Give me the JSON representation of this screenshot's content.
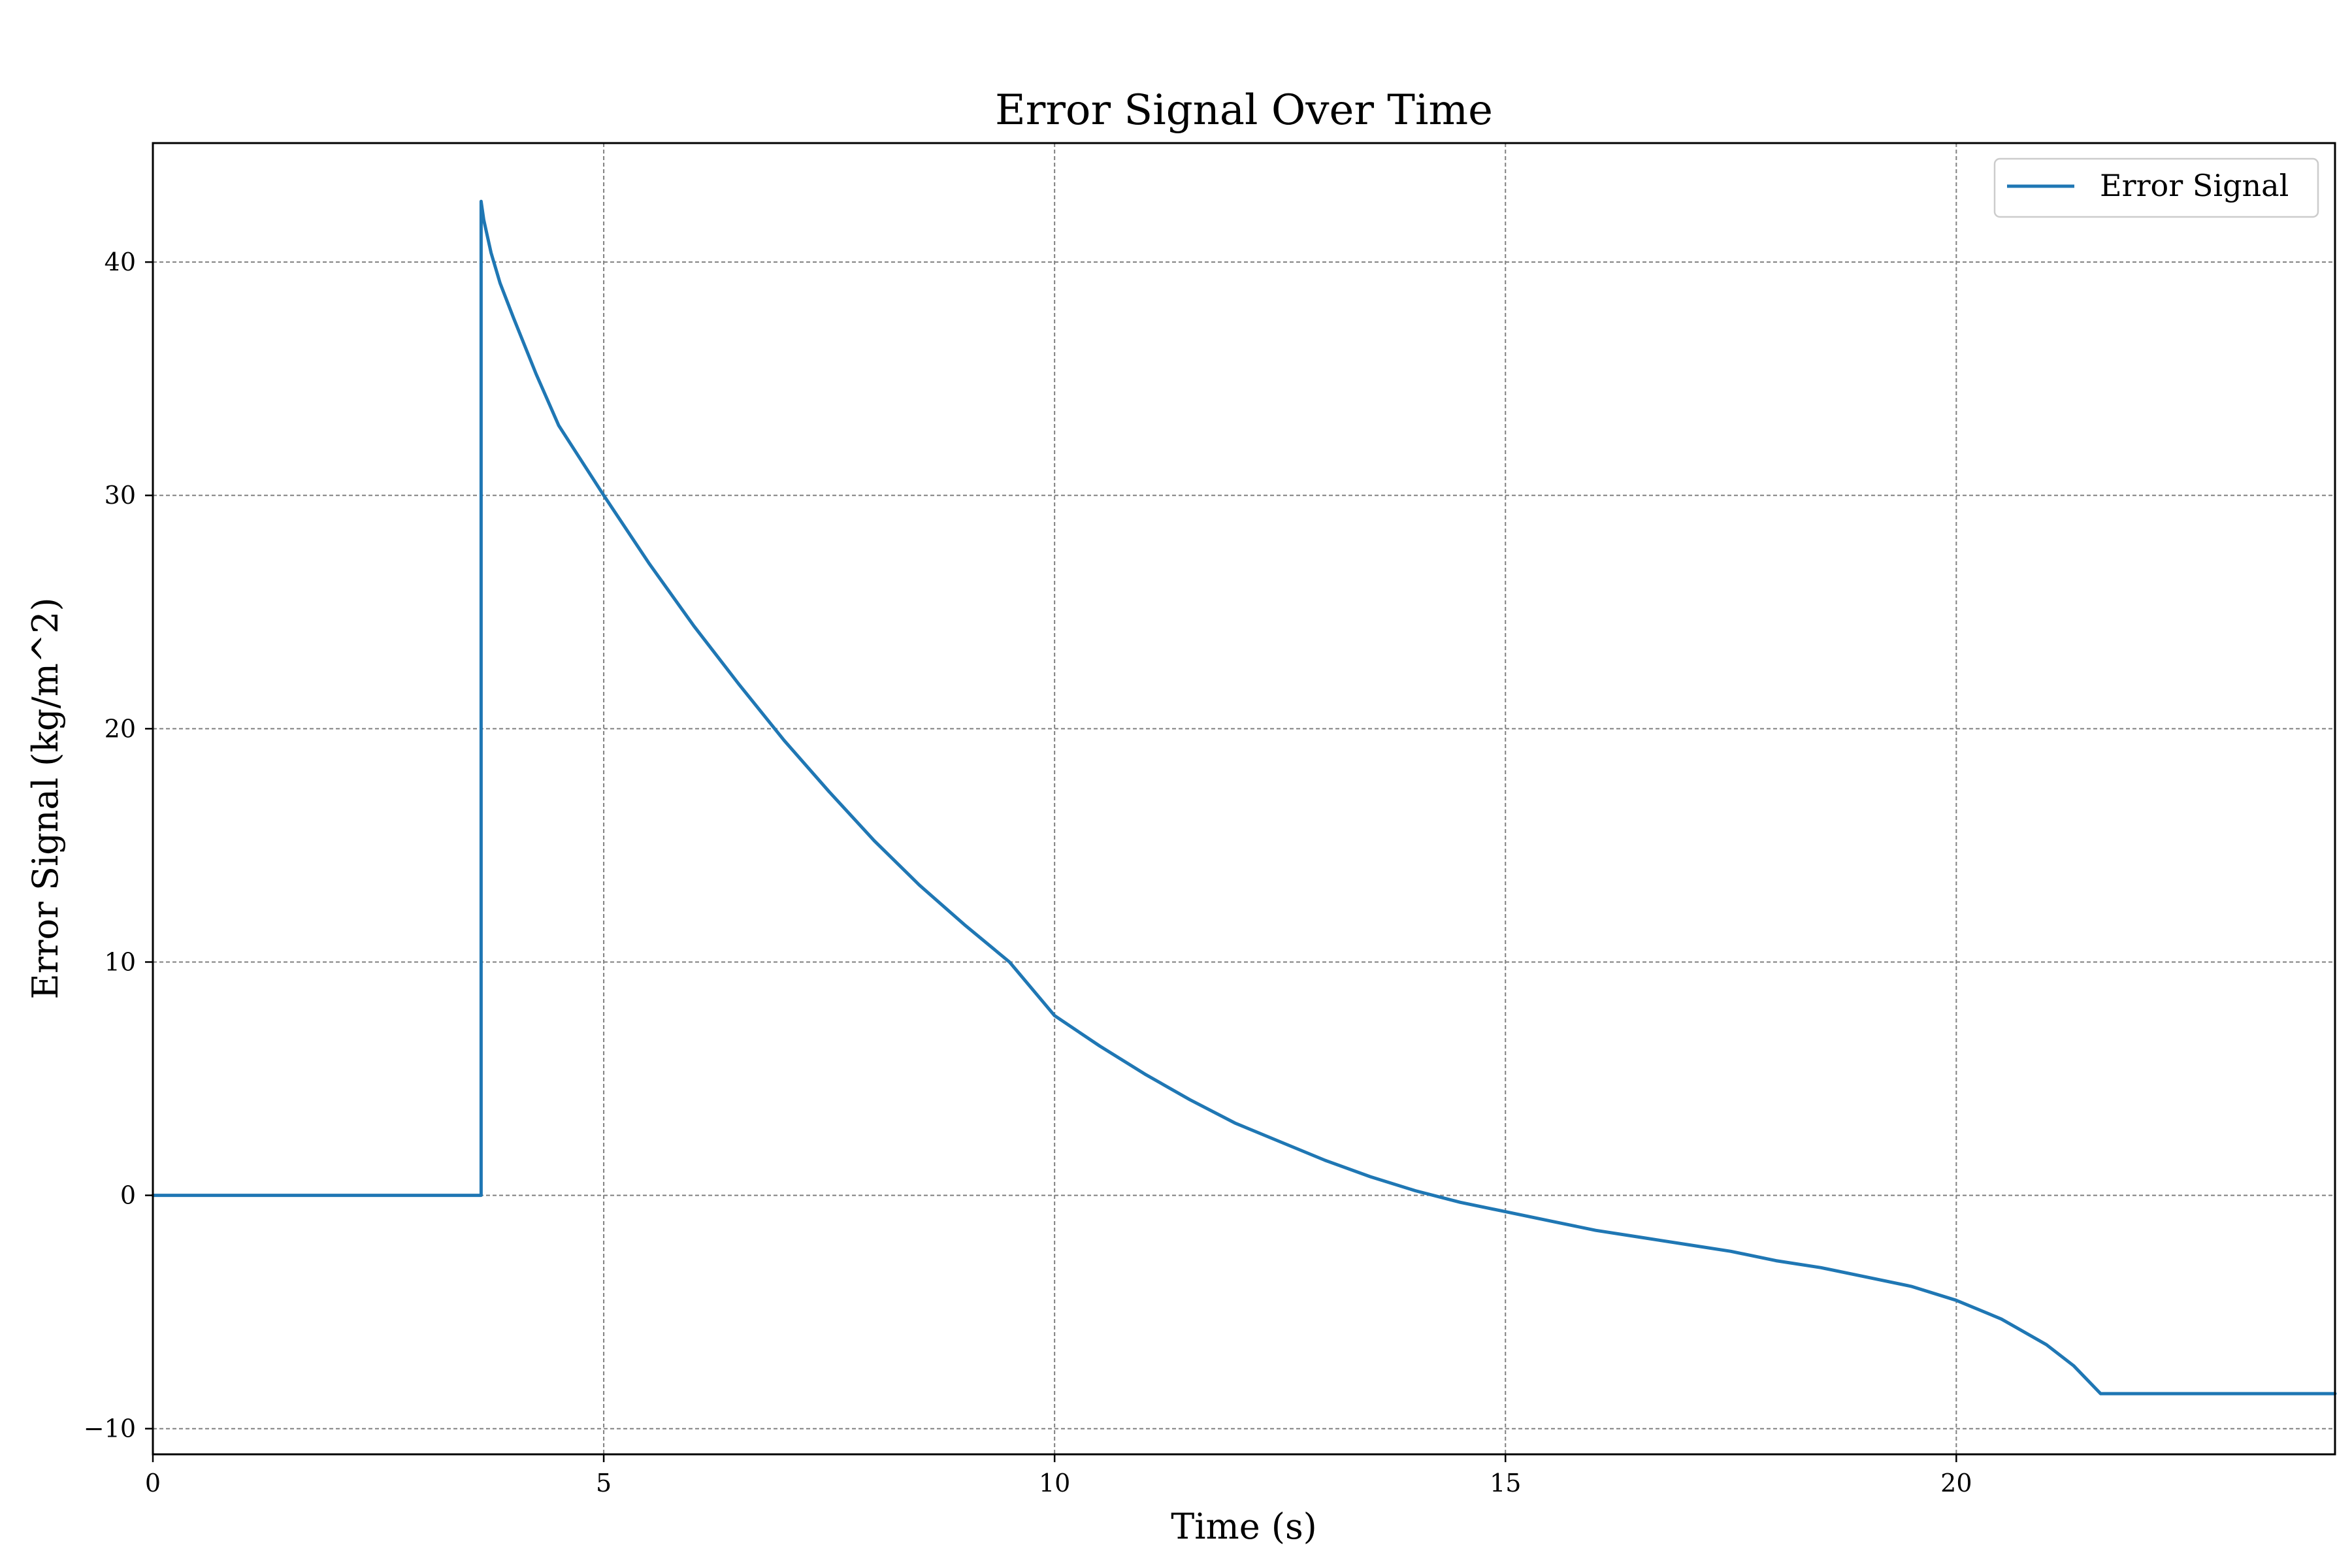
{
  "chart_data": {
    "type": "line",
    "title": "Error Signal Over Time",
    "xlabel": "Time (s)",
    "ylabel": "Error Signal (kg/m^2)",
    "xlim": [
      0,
      24.2
    ],
    "ylim": [
      -11.1,
      45.1
    ],
    "xticks": [
      0,
      5,
      10,
      15,
      20
    ],
    "yticks": [
      -10,
      0,
      10,
      20,
      30,
      40
    ],
    "ytick_labels": [
      "−10",
      "0",
      "10",
      "20",
      "30",
      "40"
    ],
    "grid": true,
    "legend_position": "top-right",
    "colors": {
      "series": "#1f77b4",
      "grid": "#808080"
    },
    "series": [
      {
        "name": "Error Signal",
        "x": [
          0,
          3.64,
          3.64,
          3.67,
          3.75,
          3.85,
          4.0,
          4.25,
          4.5,
          4.75,
          5.0,
          5.5,
          6.0,
          6.5,
          7.0,
          7.5,
          8.0,
          8.5,
          9.0,
          9.5,
          10.0,
          10.5,
          11.0,
          11.5,
          12.0,
          12.5,
          13.0,
          13.5,
          14.0,
          14.5,
          15.0,
          15.5,
          16.0,
          16.5,
          17.0,
          17.5,
          18.0,
          18.5,
          19.0,
          19.5,
          20.0,
          20.5,
          21.0,
          21.3,
          21.6,
          22.0,
          23.0,
          24.2
        ],
        "y": [
          0,
          0,
          42.6,
          41.8,
          40.4,
          39.1,
          37.6,
          35.2,
          33.0,
          31.5,
          30.0,
          27.1,
          24.4,
          21.9,
          19.5,
          17.3,
          15.2,
          13.3,
          11.6,
          10.0,
          7.7,
          6.4,
          5.2,
          4.1,
          3.1,
          2.3,
          1.5,
          0.8,
          0.2,
          -0.3,
          -0.7,
          -1.1,
          -1.5,
          -1.8,
          -2.1,
          -2.4,
          -2.8,
          -3.1,
          -3.5,
          -3.9,
          -4.5,
          -5.3,
          -6.4,
          -7.3,
          -8.5,
          -8.5,
          -8.5,
          -8.5
        ]
      }
    ]
  }
}
